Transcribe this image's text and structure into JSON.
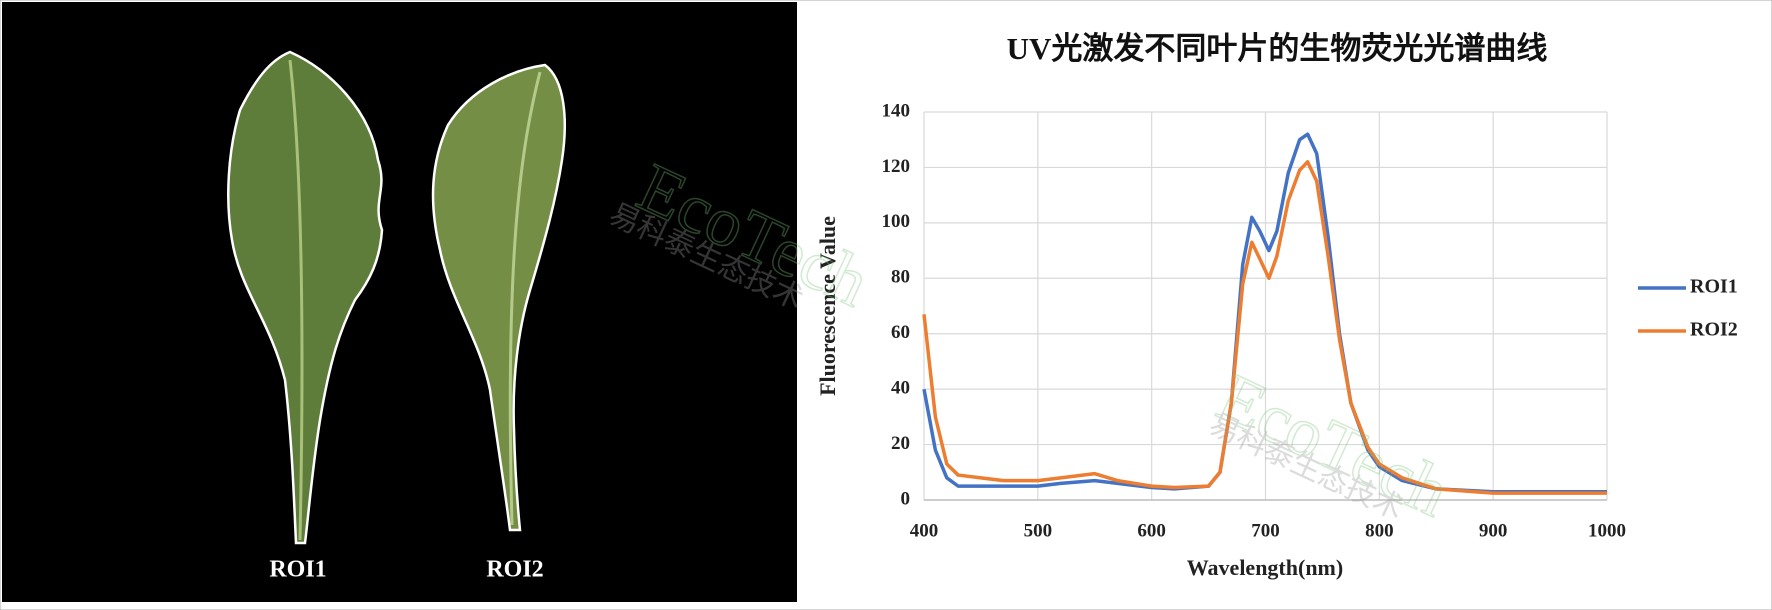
{
  "image_labels": [
    "ROI1",
    "ROI2"
  ],
  "watermark": [
    "EcoTech",
    "易科泰生态技术"
  ],
  "chart_data": {
    "type": "line",
    "title": "UV光激发不同叶片的生物荧光光谱曲线",
    "x_label": "Wavelength(nm)",
    "y_label": "Fluorescence Value",
    "x": [
      400,
      410,
      420,
      430,
      450,
      470,
      500,
      520,
      550,
      570,
      600,
      620,
      650,
      660,
      670,
      680,
      688,
      695,
      703,
      710,
      720,
      730,
      737,
      745,
      755,
      765,
      775,
      790,
      800,
      820,
      850,
      900,
      950,
      1000
    ],
    "series": [
      {
        "name": "ROI1",
        "color": "#4472c4",
        "values": [
          40,
          18,
          8,
          5,
          5,
          5,
          5,
          6,
          7,
          6,
          4.5,
          4,
          5,
          10,
          35,
          85,
          102,
          97,
          90,
          97,
          118,
          130,
          132,
          125,
          95,
          60,
          35,
          18,
          12,
          7,
          4,
          3,
          3,
          3
        ]
      },
      {
        "name": "ROI2",
        "color": "#ed7d31",
        "values": [
          67,
          30,
          13,
          9,
          8,
          7,
          7,
          8,
          9.5,
          7,
          5,
          4.5,
          5,
          10,
          35,
          78,
          93,
          87,
          80,
          88,
          108,
          119,
          122,
          115,
          88,
          58,
          35,
          19,
          13,
          8,
          4,
          2.5,
          2.5,
          2.5
        ]
      }
    ],
    "xlim": [
      400,
      1000
    ],
    "xticks": [
      400,
      500,
      600,
      700,
      800,
      900,
      1000
    ],
    "ylim": [
      0,
      140
    ],
    "yticks": [
      0,
      20,
      40,
      60,
      80,
      100,
      120,
      140
    ],
    "grid": true,
    "legend": "right"
  }
}
